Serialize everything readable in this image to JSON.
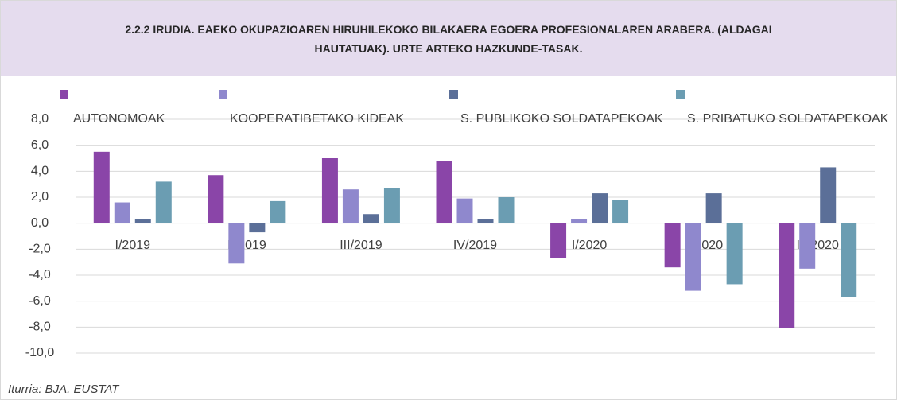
{
  "chart_data": {
    "type": "bar",
    "title": "2.2.2 IRUDIA. EAEKO OKUPAZIOAREN HIRUHILEKOKO BILAKAERA EGOERA PROFESIONALAREN ARABERA. (ALDAGAI HAUTATUAK). URTE ARTEKO HAZKUNDE-TASAK.",
    "source": "Iturria: BJA. EUSTAT",
    "categories": [
      "I/2019",
      "II/2019",
      "III/2019",
      "IV/2019",
      "I/2020",
      "II/2020",
      "III/2020"
    ],
    "series": [
      {
        "name": "AUTONOMOAK",
        "color": "#8a45a8",
        "values": [
          5.5,
          3.7,
          5.0,
          4.8,
          -2.7,
          -3.4,
          -8.1
        ]
      },
      {
        "name": "KOOPERATIBETAKO KIDEAK",
        "color": "#8f88cd",
        "values": [
          1.6,
          -3.1,
          2.6,
          1.9,
          0.3,
          -5.2,
          -3.5
        ]
      },
      {
        "name": "S. PUBLIKOKO SOLDATAPEKOAK",
        "color": "#5b6f98",
        "values": [
          0.3,
          -0.7,
          0.7,
          0.3,
          2.3,
          2.3,
          4.3
        ]
      },
      {
        "name": "S. PRIBATUKO SOLDATAPEKOAK",
        "color": "#6b9db2",
        "values": [
          3.2,
          1.7,
          2.7,
          2.0,
          1.8,
          -4.7,
          -5.7
        ]
      }
    ],
    "ylim": [
      -10,
      8
    ],
    "yticks": [
      {
        "value": -10,
        "label": "-10,0"
      },
      {
        "value": -8,
        "label": "-8,0"
      },
      {
        "value": -6,
        "label": "-6,0"
      },
      {
        "value": -4,
        "label": "-4,0"
      },
      {
        "value": -2,
        "label": "-2,0"
      },
      {
        "value": 0,
        "label": "0,0"
      },
      {
        "value": 2,
        "label": "2,0"
      },
      {
        "value": 4,
        "label": "4,0"
      },
      {
        "value": 6,
        "label": "6,0"
      },
      {
        "value": 8,
        "label": "8,0"
      }
    ],
    "grid": true
  }
}
